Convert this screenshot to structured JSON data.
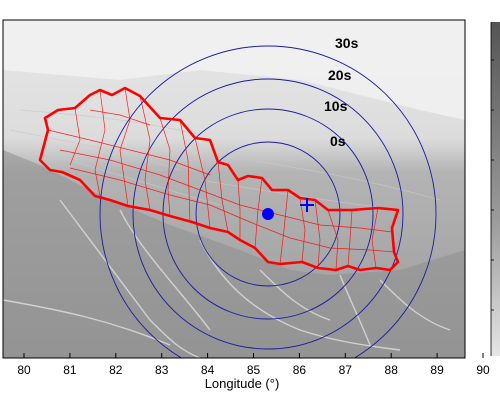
{
  "axis": {
    "xlabel": "Longitude (°)",
    "xticks": [
      "80",
      "81",
      "82",
      "83",
      "84",
      "85",
      "86",
      "87",
      "88",
      "89",
      "90"
    ]
  },
  "rings": [
    {
      "label": "0s"
    },
    {
      "label": "10s"
    },
    {
      "label": "20s"
    },
    {
      "label": "30s"
    }
  ],
  "markers": {
    "epicenter": {
      "name": "epicenter",
      "color": "#0000ff"
    },
    "station": {
      "name": "station-cross",
      "color": "#0000ff"
    }
  },
  "colors": {
    "border": "#ff0000",
    "districts": "#ff0000",
    "rings": "#1a1aa0",
    "frame": "#000000"
  }
}
